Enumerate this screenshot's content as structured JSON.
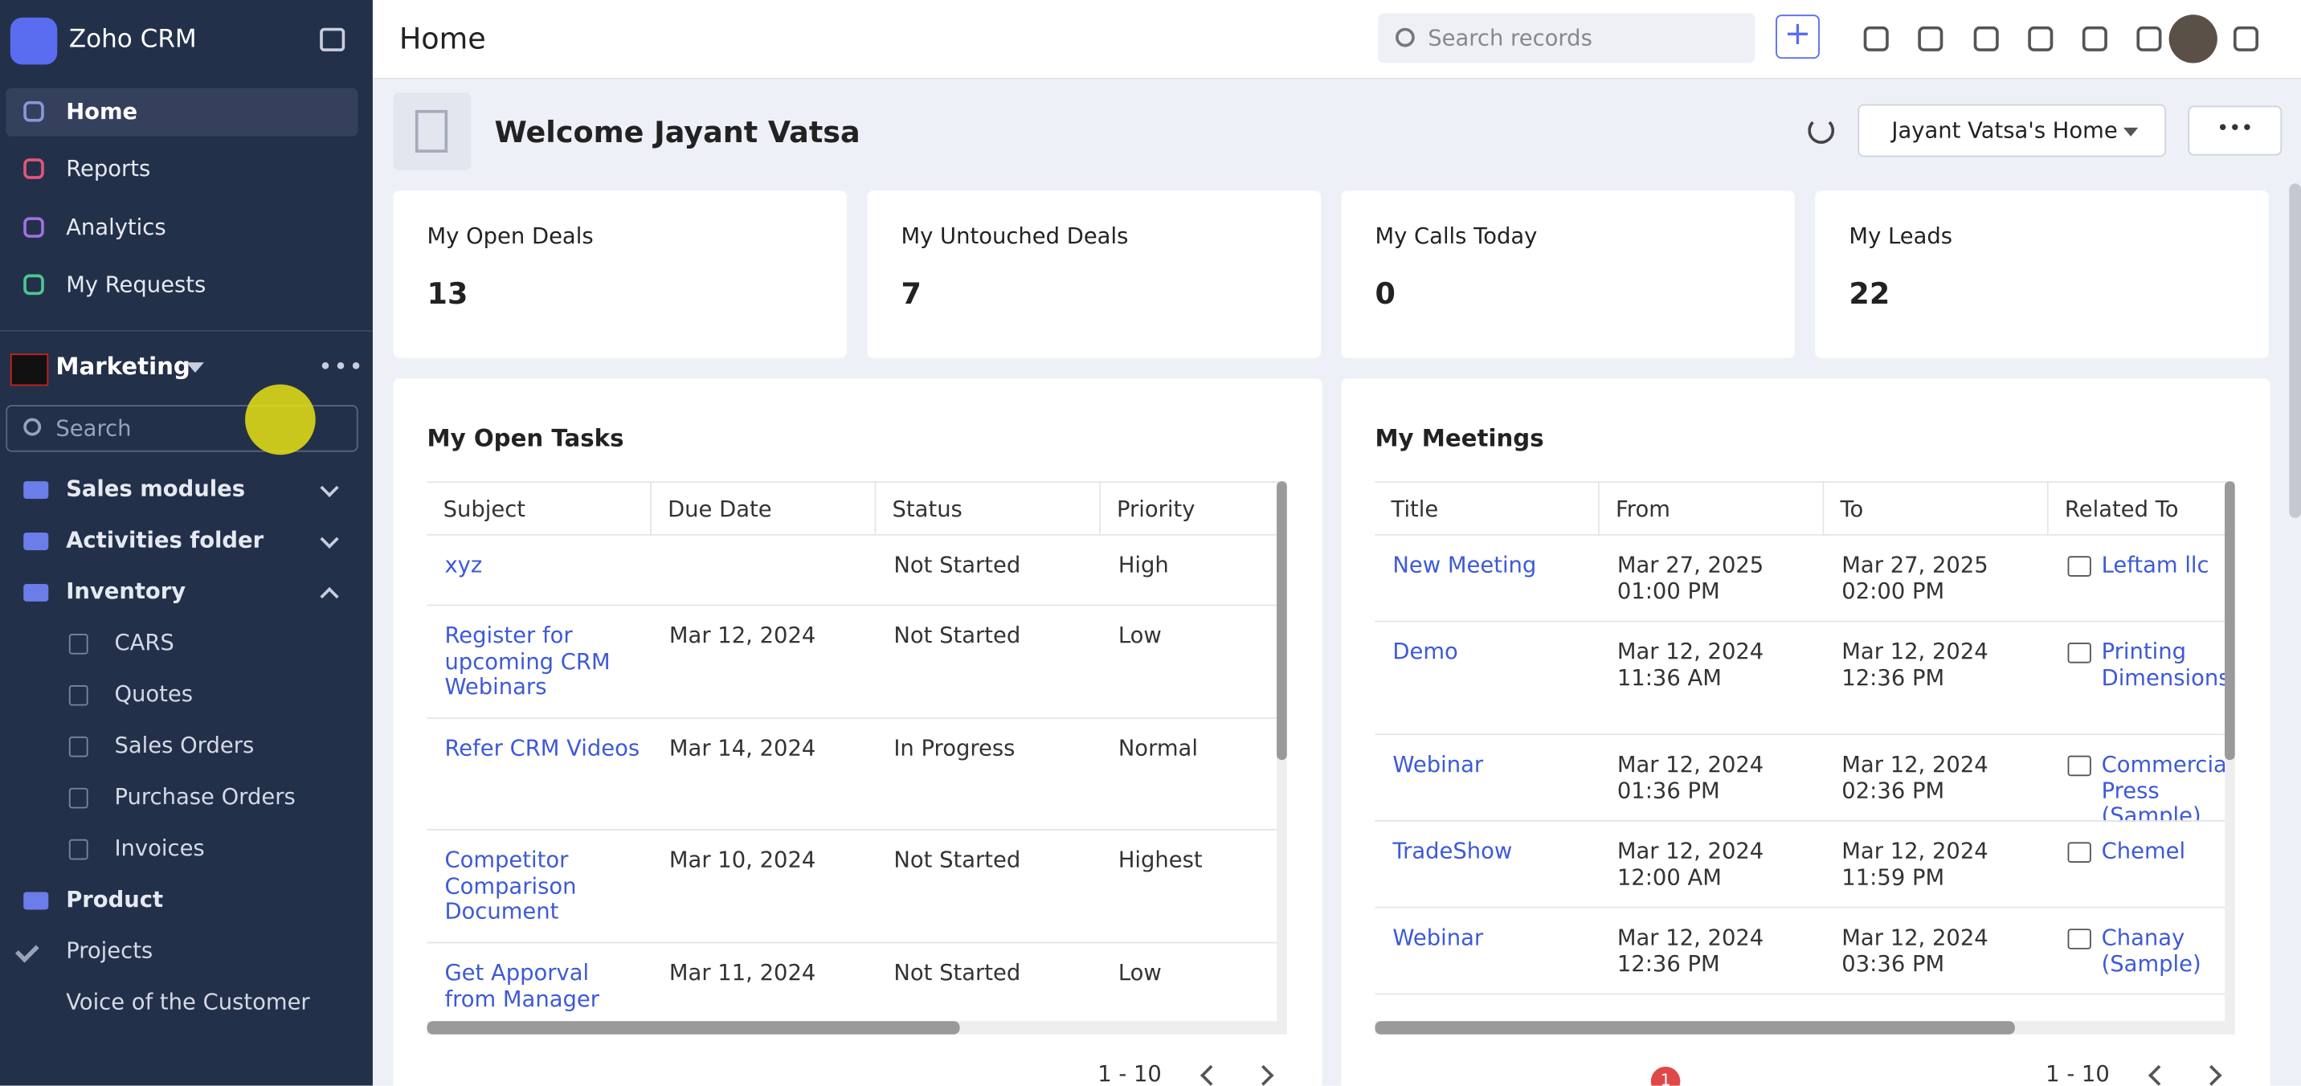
{
  "sidebar": {
    "app_name": "Zoho CRM",
    "nav": [
      "Home",
      "Reports",
      "Analytics",
      "My Requests"
    ],
    "workspace": "Marketing",
    "search_placeholder": "Search",
    "folders": [
      {
        "label": "Sales modules",
        "children": []
      },
      {
        "label": "Activities folder",
        "children": []
      },
      {
        "label": "Inventory",
        "children": [
          "CARS",
          "Quotes",
          "Sales Orders",
          "Purchase Orders",
          "Invoices"
        ]
      },
      {
        "label": "Product",
        "children": []
      }
    ],
    "extra": [
      "Projects",
      "Voice of the Customer"
    ]
  },
  "header": {
    "title": "Home",
    "search_placeholder": "Search records"
  },
  "welcome": {
    "text": "Welcome Jayant Vatsa",
    "dashboard": "Jayant Vatsa's Home"
  },
  "kpis": [
    {
      "label": "My Open Deals",
      "value": 13
    },
    {
      "label": "My Untouched Deals",
      "value": 7
    },
    {
      "label": "My Calls Today",
      "value": 0
    },
    {
      "label": "My Leads",
      "value": 22
    }
  ],
  "tasks": {
    "title": "My Open Tasks",
    "columns": [
      "Subject",
      "Due Date",
      "Status",
      "Priority"
    ],
    "rows": [
      [
        "xyz",
        null,
        "Not Started",
        "High"
      ],
      [
        "Register for upcoming CRM Webinars",
        "Mar 12, 2024",
        "Not Started",
        "Low"
      ],
      [
        "Refer CRM Videos",
        "Mar 14, 2024",
        "In Progress",
        "Normal"
      ],
      [
        "Competitor Comparison Document",
        "Mar 10, 2024",
        "Not Started",
        "Highest"
      ],
      [
        "Get Apporval from Manager",
        "Mar 11, 2024",
        "Not Started",
        "Low"
      ]
    ],
    "pagination": "1 - 10"
  },
  "meetings": {
    "title": "My Meetings",
    "columns": [
      "Title",
      "From",
      "To",
      "Related To"
    ],
    "rows": [
      [
        "New Meeting",
        [
          "Mar 27, 2025",
          "01:00 PM"
        ],
        [
          "Mar 27, 2025",
          "02:00 PM"
        ],
        "Leftam llc"
      ],
      [
        "Demo",
        [
          "Mar 12, 2024",
          "11:36 AM"
        ],
        [
          "Mar 12, 2024",
          "12:36 PM"
        ],
        "Printing Dimensions"
      ],
      [
        "Webinar",
        [
          "Mar 12, 2024",
          "01:36 PM"
        ],
        [
          "Mar 12, 2024",
          "02:36 PM"
        ],
        "Commercial Press (Sample)"
      ],
      [
        "TradeShow",
        [
          "Mar 12, 2024",
          "12:00 AM"
        ],
        [
          "Mar 12, 2024",
          "11:59 PM"
        ],
        "Chemel"
      ],
      [
        "Webinar",
        [
          "Mar 12, 2024",
          "12:36 PM"
        ],
        [
          "Mar 12, 2024",
          "03:36 PM"
        ],
        "Chanay (Sample)"
      ]
    ],
    "pagination": "1 - 10",
    "badge": "1"
  }
}
